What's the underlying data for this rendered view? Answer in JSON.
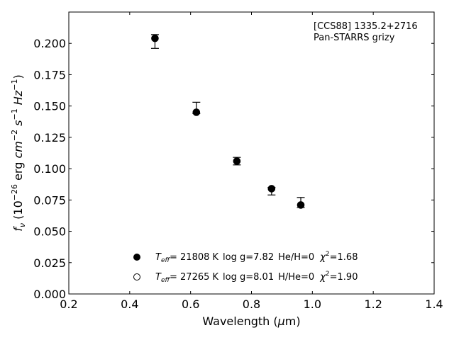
{
  "chart_data": {
    "type": "scatter",
    "annotation_lines": [
      "[CCS88] 1335.2+2716",
      "Pan-STARRS grizy"
    ],
    "xlabel": {
      "prefix": "Wavelength (",
      "mu": "μ",
      "suffix": "m)"
    },
    "ylabel": {
      "f": "f",
      "nu": "ν",
      "open": " (10",
      "exp1": "−26",
      "mid": " erg ",
      "cm": "cm",
      "exp2": "−2",
      "s": " s",
      "exp3": "−1",
      "hz": " Hz",
      "exp4": "−1",
      "close": ")"
    },
    "xlim": [
      0.2,
      1.4
    ],
    "ylim": [
      0.0,
      0.225
    ],
    "xticks": [
      "0.2",
      "0.4",
      "0.6",
      "0.8",
      "1.0",
      "1.2",
      "1.4"
    ],
    "yticks": [
      "0.000",
      "0.025",
      "0.050",
      "0.075",
      "0.100",
      "0.125",
      "0.150",
      "0.175",
      "0.200"
    ],
    "grid": false,
    "points": [
      {
        "x": 0.483,
        "y": 0.204,
        "err_low": 0.008,
        "err_high": 0.003
      },
      {
        "x": 0.619,
        "y": 0.145,
        "err_low": 0.001,
        "err_high": 0.008
      },
      {
        "x": 0.752,
        "y": 0.106,
        "err_low": 0.003,
        "err_high": 0.003
      },
      {
        "x": 0.866,
        "y": 0.084,
        "err_low": 0.005,
        "err_high": 0.001
      },
      {
        "x": 0.962,
        "y": 0.071,
        "err_low": 0.002,
        "err_high": 0.006
      }
    ],
    "legend": {
      "placement": "lower-center",
      "entries": [
        {
          "marker": "filled-circle",
          "teff_sym": "T",
          "teff_sub": "eff",
          "teff_val": "= 21808 K",
          "logg": "log g=7.82",
          "comp": "He/H=0",
          "chi_sym": "χ",
          "chi_sup": "2",
          "chi_val": "=1.68"
        },
        {
          "marker": "open-circle",
          "teff_sym": "T",
          "teff_sub": "eff",
          "teff_val": "= 27265 K",
          "logg": "log g=8.01",
          "comp": "H/He=0",
          "chi_sym": "χ",
          "chi_sup": "2",
          "chi_val": "=1.90"
        }
      ]
    }
  }
}
